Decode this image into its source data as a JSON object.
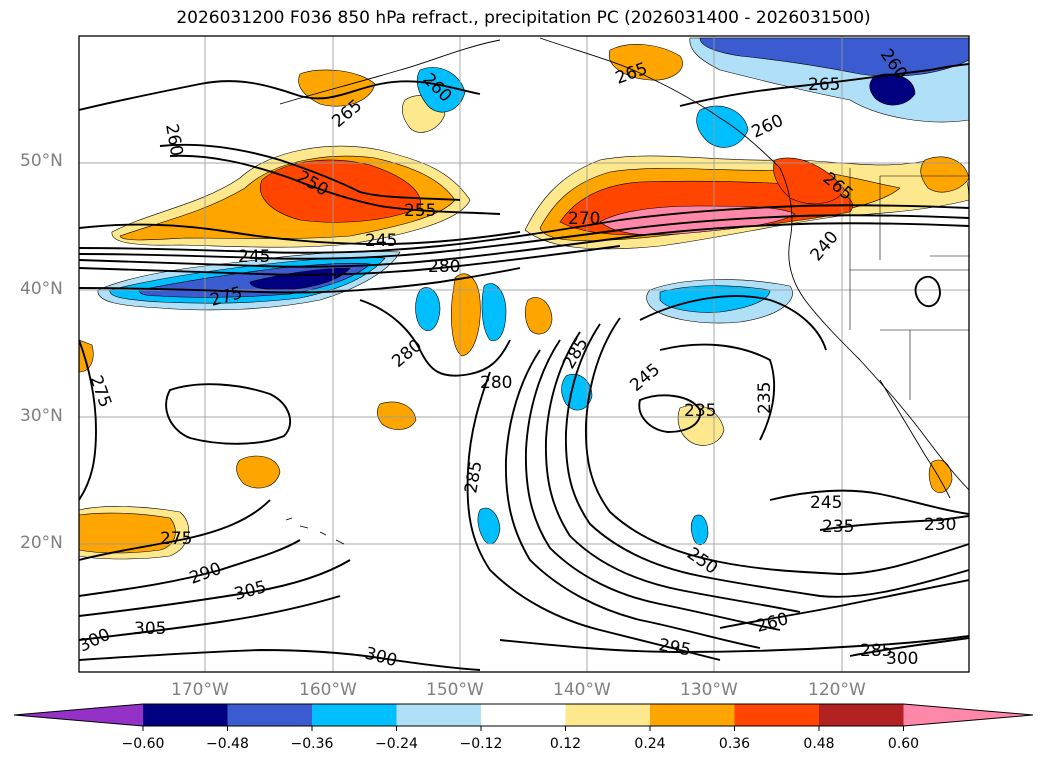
{
  "title": "2026031200 F036 850 hPa refract., precipitation PC (2026031400 - 2026031500)",
  "map": {
    "lat_labels": [
      "50°N",
      "40°N",
      "30°N",
      "20°N"
    ],
    "lon_labels": [
      "170°W",
      "160°W",
      "150°W",
      "140°W",
      "130°W",
      "120°W"
    ],
    "contour_labels": [
      "260",
      "265",
      "265",
      "260",
      "260",
      "265",
      "265",
      "260",
      "250",
      "255",
      "245",
      "245",
      "270",
      "280",
      "240",
      "275",
      "280",
      "285",
      "280",
      "245",
      "235",
      "235",
      "275",
      "285",
      "245",
      "235",
      "230",
      "275",
      "290",
      "305",
      "305",
      "300",
      "300",
      "295",
      "260",
      "250",
      "285",
      "300"
    ]
  },
  "colorbar": {
    "colors": [
      "#9432c8",
      "#000080",
      "#3b5bd0",
      "#00bfff",
      "#b0e0f8",
      "#ffffff",
      "#fde88e",
      "#ffa500",
      "#ff4500",
      "#b22222",
      "#ff88aa"
    ],
    "tick_labels": [
      "−0.60",
      "−0.48",
      "−0.36",
      "−0.24",
      "−0.12",
      "0.12",
      "0.24",
      "0.36",
      "0.48",
      "0.60"
    ]
  },
  "precip_palette": {
    "light_pos": "#fde88e",
    "orange": "#ffa500",
    "red_orange": "#ff4500",
    "dark_red": "#b22222",
    "pink": "#ff88aa",
    "light_neg": "#b0e0f8",
    "cyan": "#00bfff",
    "royal": "#3b5bd0",
    "navy": "#000080"
  }
}
